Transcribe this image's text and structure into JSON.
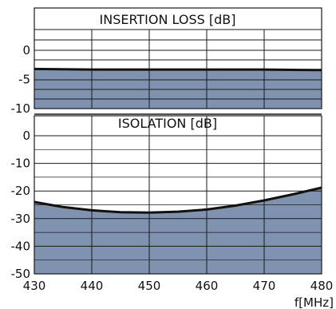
{
  "chart_data": [
    {
      "type": "area",
      "title": "INSERTION LOSS [dB]",
      "xlabel": "",
      "ylabel": "",
      "xlim": [
        430,
        480
      ],
      "ylim": [
        -10,
        0
      ],
      "yticks": [
        "0",
        "-5",
        "-10"
      ],
      "grid": true,
      "series": [
        {
          "x": [
            430,
            435,
            440,
            445,
            450,
            455,
            460,
            465,
            470,
            475,
            480
          ],
          "values": [
            -3.2,
            -3.25,
            -3.3,
            -3.3,
            -3.3,
            -3.3,
            -3.3,
            -3.3,
            -3.3,
            -3.35,
            -3.4
          ]
        }
      ]
    },
    {
      "type": "area",
      "title": "ISOLATION [dB]",
      "xlabel": "f[MHz]",
      "ylabel": "",
      "xlim": [
        430,
        480
      ],
      "ylim": [
        -50,
        0
      ],
      "xticks": [
        "430",
        "440",
        "450",
        "460",
        "470",
        "480"
      ],
      "yticks": [
        "0",
        "-10",
        "-20",
        "-30",
        "-40",
        "-50"
      ],
      "grid": true,
      "series": [
        {
          "x": [
            430,
            435,
            440,
            445,
            450,
            455,
            460,
            465,
            470,
            475,
            480
          ],
          "values": [
            -24,
            -25.8,
            -27,
            -27.7,
            -27.8,
            -27.5,
            -26.7,
            -25.3,
            -23.4,
            -21.2,
            -18.8
          ]
        }
      ]
    }
  ],
  "colors": {
    "fill": "#7f93b0",
    "curve": "#111111",
    "grid": "#1a1a1a"
  }
}
